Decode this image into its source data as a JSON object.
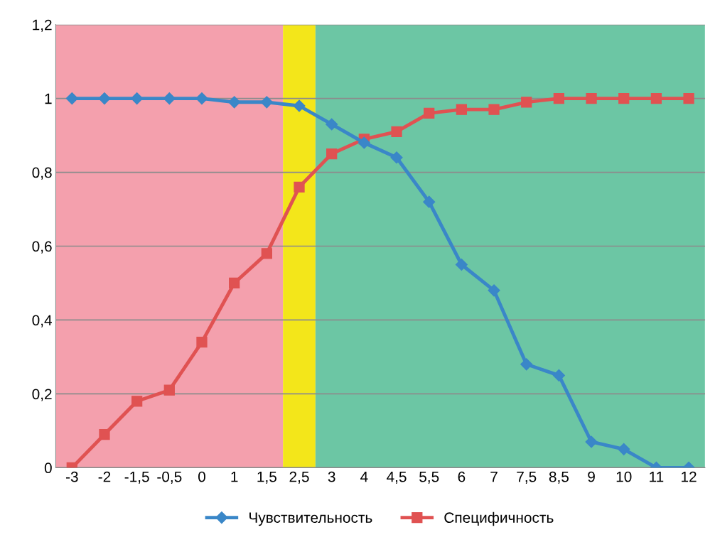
{
  "chart_data": {
    "type": "line",
    "categories": [
      "-3",
      "-2",
      "-1,5",
      "-0,5",
      "0",
      "1",
      "1,5",
      "2,5",
      "3",
      "4",
      "4,5",
      "5,5",
      "6",
      "7",
      "7,5",
      "8,5",
      "9",
      "10",
      "11",
      "12"
    ],
    "series": [
      {
        "name": "Чувствительность",
        "color": "#3a87c8",
        "marker": "diamond",
        "values": [
          1,
          1,
          1,
          1,
          1,
          0.99,
          0.99,
          0.98,
          0.93,
          0.88,
          0.84,
          0.72,
          0.55,
          0.48,
          0.28,
          0.25,
          0.07,
          0.05,
          0,
          0
        ]
      },
      {
        "name": "Специфичность",
        "color": "#e05252",
        "marker": "square",
        "values": [
          0,
          0.09,
          0.18,
          0.21,
          0.34,
          0.5,
          0.58,
          0.76,
          0.85,
          0.89,
          0.91,
          0.96,
          0.97,
          0.97,
          0.99,
          1,
          1,
          1,
          1,
          1
        ]
      }
    ],
    "ylim": [
      0,
      1.2
    ],
    "yticks": [
      0,
      {
        "value": 0.2,
        "label": "0,2"
      },
      {
        "value": 0.4,
        "label": "0,4"
      },
      {
        "value": 0.6,
        "label": "0,6"
      },
      {
        "value": 0.8,
        "label": "0,8"
      },
      1,
      {
        "value": 1.2,
        "label": "1,2"
      }
    ],
    "bands": [
      {
        "axis": "x",
        "from": "-3",
        "to": "1,5",
        "color": "#f4a0ad"
      },
      {
        "axis": "x",
        "from": "2,5",
        "to": "2,5",
        "color": "#f3e61a"
      },
      {
        "axis": "x",
        "from": "3",
        "to": "12",
        "color": "#6cc6a4"
      }
    ],
    "grid": "y",
    "legend": "bottom",
    "line_style": "solid"
  }
}
